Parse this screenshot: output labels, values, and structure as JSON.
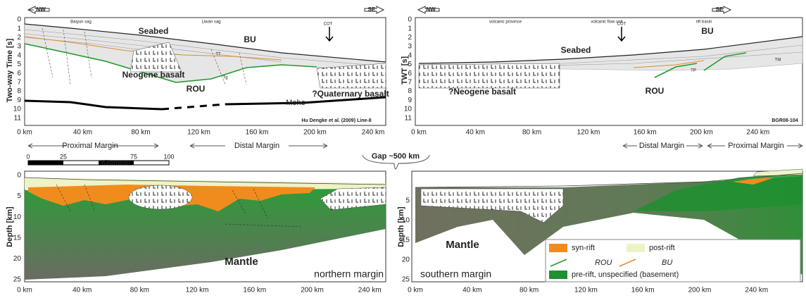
{
  "top_left": {
    "direction_left": "NW",
    "direction_right": "SE",
    "y_axis_label": "Two-way Time [s]",
    "y_ticks": [
      "0",
      "1",
      "2",
      "3",
      "4",
      "5",
      "6",
      "7",
      "8",
      "9",
      "10",
      "11"
    ],
    "x_ticks": [
      "0 km",
      "40 km",
      "80 km",
      "120 km",
      "160 km",
      "200 km",
      "240 km"
    ],
    "annotations": [
      "Baiyun sag",
      "Liwan sag",
      "COT",
      "Seabed",
      "BU",
      "TT",
      "Tg",
      "Neogene basalt",
      "ROU",
      "?Quaternary basalt",
      "Moho",
      "Hu Dengke et al. (2009) Line-8"
    ]
  },
  "top_right": {
    "direction_left": "NW",
    "direction_right": "SE",
    "y_axis_label": "TWT [s]",
    "y_ticks": [
      "0",
      "1",
      "2",
      "3",
      "4",
      "5",
      "6",
      "7",
      "8",
      "9",
      "10",
      "11"
    ],
    "x_ticks": [
      "0 km",
      "40 km",
      "80 km",
      "120 km",
      "160 km",
      "200 km",
      "240 km"
    ],
    "annotations": [
      "volcanic province",
      "volcanic flow unit",
      "rift basin",
      "COT",
      "Seabed",
      "BU",
      "TP",
      "TM",
      "ROU",
      "?Neogene basalt",
      "BGR08-104"
    ]
  },
  "margins": {
    "left": [
      "Proximal Margin",
      "Distal Margin"
    ],
    "right": [
      "Distal Margin",
      "Proximal Margin"
    ],
    "gap": "Gap ~500 km"
  },
  "bottom_left": {
    "scale_bar": [
      "0",
      "25",
      "Kilometer",
      "75",
      "100"
    ],
    "y_axis_label": "Depth [km]",
    "y_ticks": [
      "0",
      "5",
      "10",
      "15",
      "20",
      "25"
    ],
    "x_ticks": [
      "0 km",
      "40 km",
      "80 km",
      "120 km",
      "160 km",
      "200 km",
      "240 km"
    ],
    "annotations": [
      "Mantle",
      "northern margin"
    ]
  },
  "bottom_right": {
    "y_axis_label": "Depth [km]",
    "y_ticks": [
      "5",
      "10",
      "15",
      "20",
      "25"
    ],
    "x_ticks": [
      "0 km",
      "40 km",
      "80 km",
      "120 km",
      "160 km",
      "200 km",
      "240 km"
    ],
    "annotations": [
      "Mantle",
      "southern margin"
    ]
  },
  "legend": [
    "syn-rift",
    "post-rift",
    "ROU",
    "BU",
    "pre-rift, unspecified (basement)"
  ]
}
